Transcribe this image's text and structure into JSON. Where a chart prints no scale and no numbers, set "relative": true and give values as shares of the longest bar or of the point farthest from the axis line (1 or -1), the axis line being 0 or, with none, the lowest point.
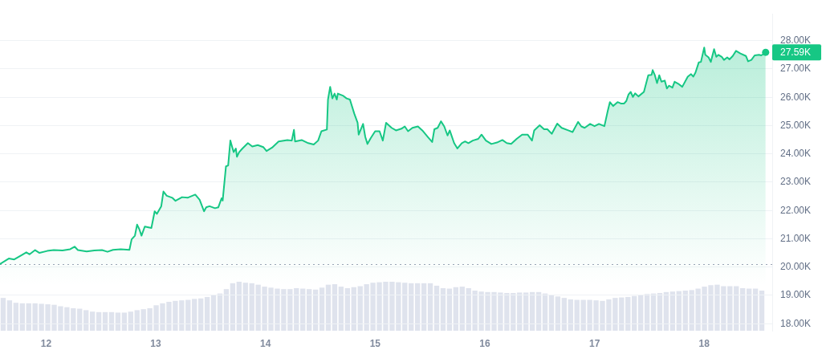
{
  "chart_data": [
    {
      "type": "area",
      "color": "#16c784",
      "x": [
        11.58,
        11.66,
        11.71,
        11.78,
        11.82,
        11.85,
        11.9,
        11.94,
        12.01,
        12.07,
        12.15,
        12.22,
        12.26,
        12.29,
        12.37,
        12.44,
        12.51,
        12.56,
        12.61,
        12.68,
        12.76,
        12.78,
        12.81,
        12.83,
        12.85,
        12.87,
        12.9,
        12.96,
        12.99,
        13.01,
        13.05,
        13.07,
        13.1,
        13.15,
        13.18,
        13.24,
        13.29,
        13.36,
        13.4,
        13.44,
        13.46,
        13.49,
        13.54,
        13.57,
        13.6,
        13.61,
        13.64,
        13.66,
        13.68,
        13.69,
        13.71,
        13.73,
        13.74,
        13.76,
        13.79,
        13.84,
        13.88,
        13.93,
        13.98,
        14.01,
        14.06,
        14.12,
        14.2,
        14.24,
        14.26,
        14.27,
        14.33,
        14.39,
        14.44,
        14.48,
        14.51,
        14.56,
        14.57,
        14.59,
        14.61,
        14.63,
        14.65,
        14.66,
        14.71,
        14.74,
        14.77,
        14.81,
        14.84,
        14.85,
        14.89,
        14.91,
        14.93,
        14.96,
        15.0,
        15.04,
        15.07,
        15.1,
        15.15,
        15.19,
        15.24,
        15.27,
        15.3,
        15.34,
        15.39,
        15.43,
        15.48,
        15.52,
        15.54,
        15.57,
        15.6,
        15.63,
        15.66,
        15.68,
        15.72,
        15.75,
        15.79,
        15.82,
        15.85,
        15.89,
        15.94,
        15.97,
        16.01,
        16.06,
        16.11,
        16.16,
        16.2,
        16.24,
        16.29,
        16.34,
        16.39,
        16.43,
        16.45,
        16.5,
        16.54,
        16.57,
        16.61,
        16.66,
        16.7,
        16.76,
        16.8,
        16.85,
        16.88,
        16.91,
        16.96,
        17.0,
        17.04,
        17.09,
        17.12,
        17.14,
        17.17,
        17.21,
        17.24,
        17.27,
        17.29,
        17.31,
        17.33,
        17.35,
        17.37,
        17.4,
        17.45,
        17.49,
        17.52,
        17.53,
        17.55,
        17.57,
        17.59,
        17.61,
        17.64,
        17.66,
        17.68,
        17.71,
        17.73,
        17.77,
        17.8,
        17.85,
        17.88,
        17.9,
        17.92,
        17.95,
        17.97,
        18.0,
        18.01,
        18.04,
        18.06,
        18.09,
        18.11,
        18.13,
        18.16,
        18.18,
        18.21,
        18.23,
        18.26,
        18.29,
        18.33,
        18.38,
        18.4,
        18.43,
        18.46,
        18.5,
        18.52,
        18.54,
        18.56
      ],
      "values": [
        20110,
        20300,
        20270,
        20430,
        20520,
        20450,
        20600,
        20500,
        20570,
        20600,
        20590,
        20630,
        20720,
        20600,
        20550,
        20590,
        20600,
        20540,
        20610,
        20630,
        20610,
        20980,
        21110,
        21500,
        21340,
        21110,
        21430,
        21380,
        21970,
        21880,
        22150,
        22670,
        22520,
        22450,
        22340,
        22470,
        22450,
        22560,
        22380,
        21970,
        22110,
        22150,
        22080,
        22110,
        22430,
        22350,
        23560,
        23590,
        24470,
        24330,
        24060,
        24190,
        23900,
        24060,
        24190,
        24380,
        24260,
        24310,
        24240,
        24100,
        24220,
        24440,
        24490,
        24470,
        24850,
        24440,
        24490,
        24380,
        24330,
        24470,
        24800,
        24860,
        25920,
        26370,
        25960,
        26130,
        25920,
        26130,
        26050,
        25960,
        25920,
        25420,
        25100,
        24680,
        25060,
        24600,
        24350,
        24560,
        24800,
        24800,
        24470,
        25100,
        24920,
        24830,
        24890,
        24970,
        24800,
        24920,
        24970,
        24830,
        24600,
        24420,
        24870,
        24920,
        25150,
        24970,
        24650,
        24830,
        24380,
        24190,
        24380,
        24440,
        24380,
        24470,
        24530,
        24680,
        24470,
        24350,
        24400,
        24490,
        24380,
        24350,
        24530,
        24680,
        24680,
        24470,
        24830,
        25010,
        24870,
        24870,
        24710,
        25070,
        24920,
        24830,
        24770,
        25130,
        24970,
        24920,
        25060,
        24980,
        25060,
        24980,
        25510,
        25830,
        25690,
        25830,
        25780,
        25780,
        25870,
        26100,
        26190,
        26010,
        26140,
        26030,
        26190,
        26780,
        26790,
        26960,
        26780,
        26500,
        26780,
        26550,
        26590,
        26310,
        26410,
        26340,
        26550,
        26460,
        26370,
        26730,
        26820,
        26730,
        26870,
        27230,
        27250,
        27760,
        27500,
        27410,
        27250,
        27700,
        27430,
        27500,
        27430,
        27320,
        27410,
        27340,
        27460,
        27640,
        27550,
        27460,
        27270,
        27320,
        27480,
        27500,
        27480,
        27530,
        27590
      ],
      "xlim": [
        11.58,
        18.62
      ],
      "xticks": [
        12,
        13,
        14,
        15,
        16,
        17,
        18
      ],
      "ylim": [
        17750,
        28950
      ],
      "yticks": [
        {
          "value": 18000,
          "label": "18.00K"
        },
        {
          "value": 19000,
          "label": "19.00K"
        },
        {
          "value": 20000,
          "label": "20.00K"
        },
        {
          "value": 21000,
          "label": "21.00K"
        },
        {
          "value": 22000,
          "label": "22.00K"
        },
        {
          "value": 23000,
          "label": "23.00K"
        },
        {
          "value": 24000,
          "label": "24.00K"
        },
        {
          "value": 25000,
          "label": "25.00K"
        },
        {
          "value": 26000,
          "label": "26.00K"
        },
        {
          "value": 27000,
          "label": "27.00K"
        },
        {
          "value": 28000,
          "label": "28.00K"
        }
      ],
      "grid": "y",
      "ref_lines": [
        {
          "axis": "y",
          "value": 20090,
          "line_style": "dotted",
          "color": "#9aa3b5"
        }
      ],
      "annotations": [
        {
          "text": "27.59K",
          "x": 18.56,
          "y": 27590
        }
      ]
    },
    {
      "type": "bar",
      "relative": true,
      "color": "#dfe3ed",
      "categories": [
        null,
        null,
        null,
        null,
        null,
        null,
        null,
        null,
        null,
        null,
        null,
        null,
        null,
        null,
        null,
        null,
        null,
        null,
        null,
        null,
        null,
        null,
        null,
        null,
        null,
        null,
        null,
        null,
        null,
        null,
        null,
        null,
        null,
        null,
        null,
        null,
        null,
        null,
        null,
        null,
        null,
        null,
        null,
        null,
        null,
        null,
        null,
        null,
        null,
        null,
        null,
        null,
        null,
        null,
        null,
        null,
        null,
        null,
        null,
        null,
        null,
        null,
        null,
        null,
        null,
        null,
        null,
        null,
        null,
        null,
        null,
        null,
        null,
        null,
        null,
        null,
        null,
        null,
        null,
        null,
        null,
        null,
        null,
        null,
        null,
        null,
        null,
        null,
        null,
        null,
        null,
        null,
        null,
        null,
        null,
        null,
        null,
        null,
        null,
        null,
        null,
        null,
        null,
        null,
        null,
        null,
        null,
        null,
        null,
        null,
        null,
        null,
        null,
        null,
        null,
        null,
        null,
        null,
        null,
        null
      ],
      "values": [
        0.67,
        0.62,
        0.57,
        0.56,
        0.56,
        0.56,
        0.55,
        0.54,
        0.53,
        0.5,
        0.48,
        0.46,
        0.45,
        0.42,
        0.39,
        0.38,
        0.38,
        0.38,
        0.37,
        0.37,
        0.39,
        0.42,
        0.44,
        0.46,
        0.52,
        0.56,
        0.59,
        0.61,
        0.62,
        0.63,
        0.65,
        0.66,
        0.69,
        0.73,
        0.76,
        0.85,
        0.97,
        1,
        0.98,
        0.97,
        0.94,
        0.9,
        0.88,
        0.86,
        0.85,
        0.85,
        0.87,
        0.86,
        0.85,
        0.84,
        0.88,
        0.94,
        0.95,
        0.9,
        0.87,
        0.89,
        0.91,
        0.95,
        0.98,
        0.99,
        1,
        1,
        0.99,
        0.98,
        0.97,
        0.97,
        0.97,
        0.97,
        0.92,
        0.87,
        0.86,
        0.89,
        0.9,
        0.87,
        0.82,
        0.8,
        0.79,
        0.79,
        0.78,
        0.77,
        0.77,
        0.78,
        0.78,
        0.79,
        0.79,
        0.76,
        0.73,
        0.7,
        0.67,
        0.64,
        0.63,
        0.63,
        0.63,
        0.62,
        0.61,
        0.64,
        0.67,
        0.68,
        0.69,
        0.71,
        0.73,
        0.75,
        0.76,
        0.77,
        0.79,
        0.8,
        0.81,
        0.82,
        0.83,
        0.86,
        0.9,
        0.93,
        0.94,
        0.91,
        0.91,
        0.91,
        0.87,
        0.86,
        0.86,
        0.82
      ]
    }
  ]
}
